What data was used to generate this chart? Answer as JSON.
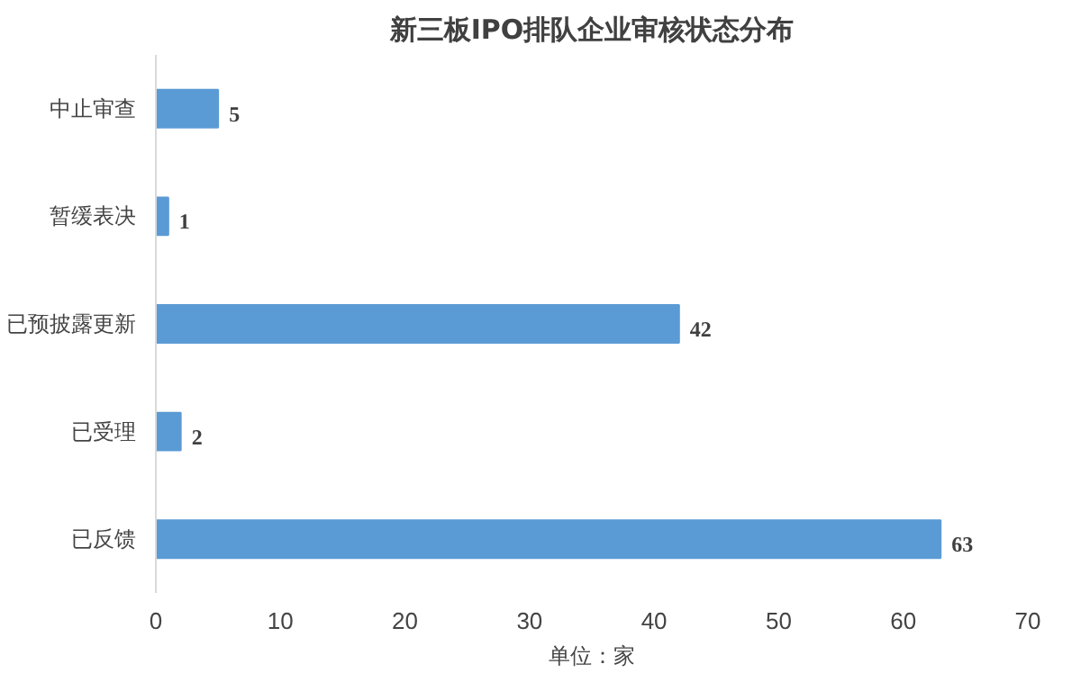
{
  "chart_data": {
    "type": "bar",
    "orientation": "horizontal",
    "title": "新三板IPO排队企业审核状态分布",
    "xlabel": "单位：家",
    "categories": [
      "中止审查",
      "暂缓表决",
      "已预披露更新",
      "已受理",
      "已反馈"
    ],
    "values": [
      5,
      1,
      42,
      2,
      63
    ],
    "color": "#5b9bd5",
    "xlim": [
      0,
      70
    ],
    "xticks": [
      0,
      10,
      20,
      30,
      40,
      50,
      60,
      70
    ],
    "grid": false,
    "data_labels": true
  }
}
